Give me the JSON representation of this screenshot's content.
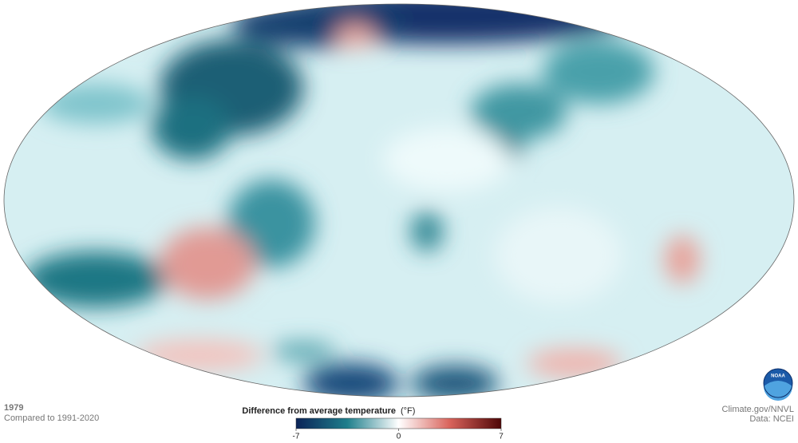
{
  "map": {
    "year": "1979",
    "baseline": "Compared to 1991-2020"
  },
  "legend": {
    "title": "Difference from average temperature",
    "unit": "(°F)",
    "ticks": [
      -7,
      0,
      7
    ]
  },
  "credits": {
    "source": "Climate.gov/NNVL",
    "data": "Data: NCEI",
    "logo": "NOAA"
  }
}
